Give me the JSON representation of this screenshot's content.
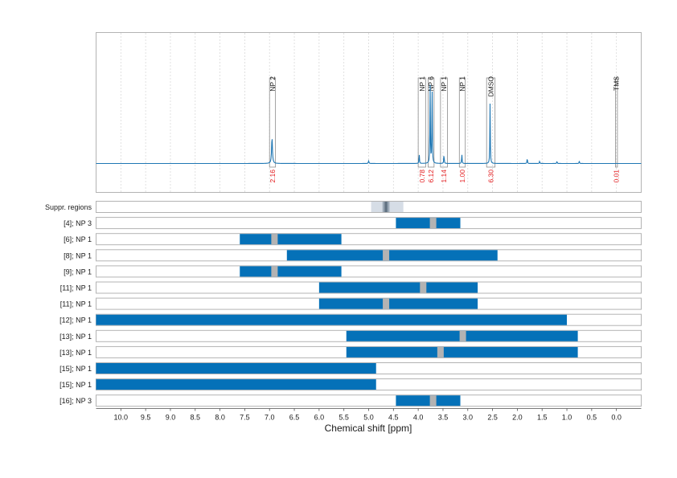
{
  "chart_data": {
    "type": "nmr-spectrum-with-region-bars",
    "xlabel": "Chemical shift [ppm]",
    "xlim": [
      10.5,
      -0.5
    ],
    "x_reversed": true,
    "xticks": [
      10.0,
      9.5,
      9.0,
      8.5,
      8.0,
      7.5,
      7.0,
      6.5,
      6.0,
      5.5,
      5.0,
      4.5,
      4.0,
      3.5,
      3.0,
      2.5,
      2.0,
      1.5,
      1.0,
      0.5,
      0.0
    ],
    "xtick_labels": [
      "10.0",
      "9.5",
      "9.0",
      "8.5",
      "8.0",
      "7.5",
      "7.0",
      "6.5",
      "6.0",
      "5.5",
      "5.0",
      "4.5",
      "4.0",
      "3.5",
      "3.0",
      "2.5",
      "2.0",
      "1.5",
      "1.0",
      "0.5",
      "0.0"
    ],
    "colors": {
      "spectrum": "#1f77b4",
      "bar": "#0571b8",
      "peak_marker": "#b3b3b3",
      "integral_text": "#e41a1c",
      "suppr_light": "#d6dde6",
      "suppr_dark": "#627383"
    },
    "spectrum": {
      "peaks": [
        {
          "ppm": 6.95,
          "height": 0.32,
          "width": 0.04
        },
        {
          "ppm": 3.98,
          "height": 0.12,
          "width": 0.02
        },
        {
          "ppm": 3.76,
          "height": 0.98,
          "width": 0.02
        },
        {
          "ppm": 3.72,
          "height": 0.95,
          "width": 0.02
        },
        {
          "ppm": 3.48,
          "height": 0.12,
          "width": 0.02
        },
        {
          "ppm": 3.12,
          "height": 0.12,
          "width": 0.02
        },
        {
          "ppm": 2.55,
          "height": 0.72,
          "width": 0.02
        },
        {
          "ppm": 5.0,
          "height": 0.03,
          "width": 0.03
        },
        {
          "ppm": 1.8,
          "height": 0.07,
          "width": 0.02
        },
        {
          "ppm": 1.55,
          "height": 0.03,
          "width": 0.02
        },
        {
          "ppm": 1.2,
          "height": 0.03,
          "width": 0.02
        },
        {
          "ppm": 0.75,
          "height": 0.03,
          "width": 0.02
        }
      ],
      "annotations": [
        {
          "label": "NP 2",
          "ppm_start": 7.0,
          "ppm_end": 6.88,
          "integral": "2.16"
        },
        {
          "label": "NP 1",
          "ppm_start": 4.0,
          "ppm_end": 3.85,
          "integral": "0.78"
        },
        {
          "label": "NP 6",
          "ppm_start": 3.8,
          "ppm_end": 3.68,
          "integral": "6.12"
        },
        {
          "label": "NP 1",
          "ppm_start": 3.55,
          "ppm_end": 3.41,
          "integral": "1.14"
        },
        {
          "label": "NP 1",
          "ppm_start": 3.17,
          "ppm_end": 3.05,
          "integral": "1.00"
        },
        {
          "label": "DMSO",
          "ppm_start": 2.62,
          "ppm_end": 2.45,
          "integral": "6.30"
        },
        {
          "label": "TMS",
          "ppm_start": 0.02,
          "ppm_end": -0.02,
          "integral": "0.01"
        }
      ]
    },
    "rows": [
      {
        "label": "Suppr. regions",
        "type": "suppr",
        "start": 4.95,
        "end": 4.3,
        "dark_start": 4.72,
        "dark_end": 4.58
      },
      {
        "label": "[4]; NP 3",
        "start": 4.45,
        "end": 3.15,
        "marker": 3.7
      },
      {
        "label": "[6]; NP 1",
        "start": 7.6,
        "end": 5.55,
        "marker": 6.9
      },
      {
        "label": "[8]; NP 1",
        "start": 6.65,
        "end": 2.4,
        "marker": 4.65
      },
      {
        "label": "[9]; NP 1",
        "start": 7.6,
        "end": 5.55,
        "marker": 6.9
      },
      {
        "label": "[11]; NP 1",
        "start": 6.0,
        "end": 2.8,
        "marker": 3.9
      },
      {
        "label": "[11]; NP 1",
        "start": 6.0,
        "end": 2.8,
        "marker": 4.65
      },
      {
        "label": "[12]; NP 1",
        "start": 10.5,
        "end": 1.0,
        "marker": null
      },
      {
        "label": "[13]; NP 1",
        "start": 5.45,
        "end": 0.78,
        "marker": 3.1
      },
      {
        "label": "[13]; NP 1",
        "start": 5.45,
        "end": 0.78,
        "marker": 3.55
      },
      {
        "label": "[15]; NP 1",
        "start": 10.5,
        "end": 4.85,
        "marker": null
      },
      {
        "label": "[15]; NP 1",
        "start": 10.5,
        "end": 4.85,
        "marker": null
      },
      {
        "label": "[16]; NP 3",
        "start": 4.45,
        "end": 3.15,
        "marker": 3.7
      }
    ]
  }
}
